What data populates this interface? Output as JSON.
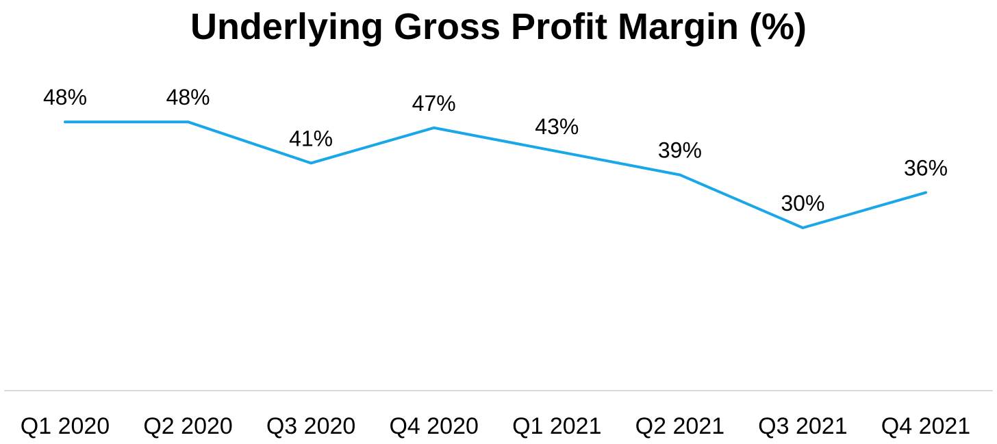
{
  "chart_data": {
    "type": "line",
    "title": "Underlying Gross Profit Margin (%)",
    "categories": [
      "Q1 2020",
      "Q2 2020",
      "Q3 2020",
      "Q4 2020",
      "Q1 2021",
      "Q2 2021",
      "Q3 2021",
      "Q4 2021"
    ],
    "series": [
      {
        "values": [
          48,
          48,
          41,
          47,
          43,
          39,
          30,
          36
        ],
        "data_labels": [
          "48%",
          "48%",
          "41%",
          "47%",
          "43%",
          "39%",
          "30%",
          "36%"
        ],
        "color": "#1AA7E8"
      }
    ],
    "xlabel": "",
    "ylabel": "",
    "grid": false,
    "legend": "none",
    "axis_color": "#D9D9D9"
  }
}
